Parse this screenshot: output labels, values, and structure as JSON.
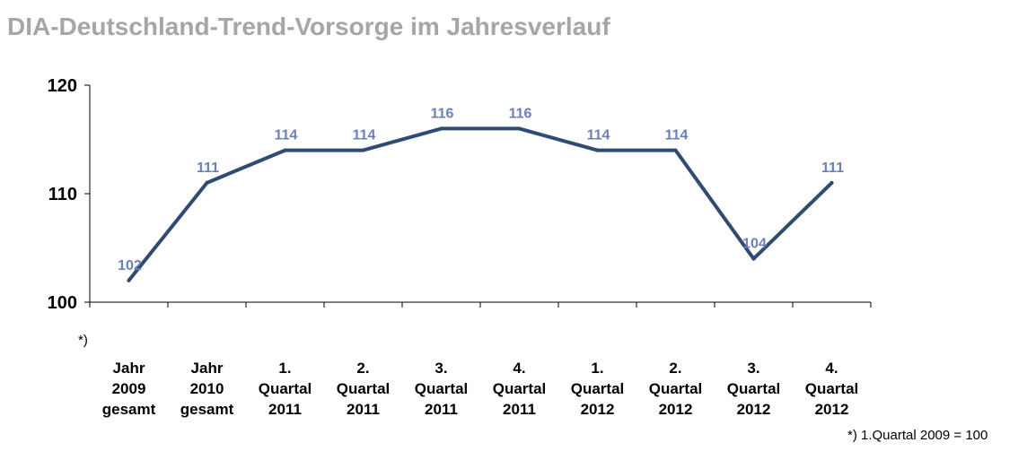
{
  "title": "DIA-Deutschland-Trend-Vorsorge im Jahresverlauf",
  "footnote": "*) 1.Quartal 2009 = 100",
  "origin_marker": "*)",
  "chart_data": {
    "type": "line",
    "title": "DIA-Deutschland-Trend-Vorsorge im Jahresverlauf",
    "categories": [
      [
        "Jahr",
        "2009",
        "gesamt"
      ],
      [
        "Jahr",
        "2010",
        "gesamt"
      ],
      [
        "1.",
        "Quartal",
        "2011"
      ],
      [
        "2.",
        "Quartal",
        "2011"
      ],
      [
        "3.",
        "Quartal",
        "2011"
      ],
      [
        "4.",
        "Quartal",
        "2011"
      ],
      [
        "1.",
        "Quartal",
        "2012"
      ],
      [
        "2.",
        "Quartal",
        "2012"
      ],
      [
        "3.",
        "Quartal",
        "2012"
      ],
      [
        "4.",
        "Quartal",
        "2012"
      ]
    ],
    "values": [
      102,
      111,
      114,
      114,
      116,
      116,
      114,
      114,
      104,
      111
    ],
    "ylim": [
      100,
      120
    ],
    "yticks": [
      100,
      110,
      120
    ],
    "grid": false,
    "xlabel": "",
    "ylabel": "",
    "colors": {
      "line": "#2f4a73",
      "data_label": "#6b7fb8",
      "axis": "#000000"
    }
  }
}
